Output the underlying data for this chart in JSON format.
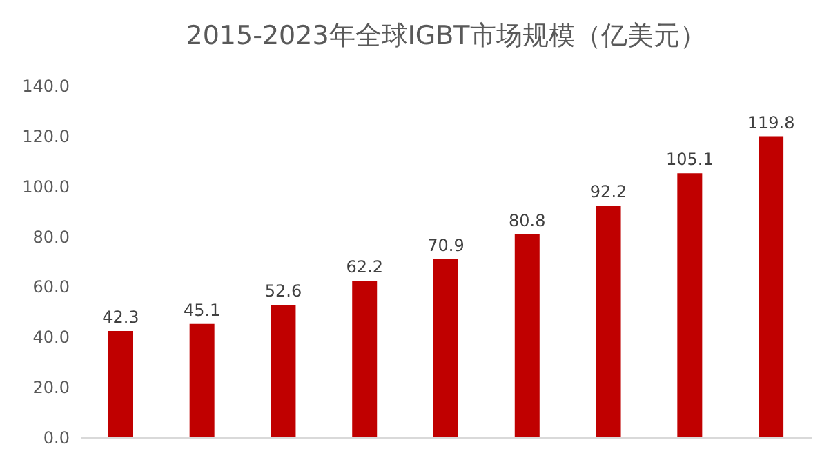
{
  "chart_data": {
    "type": "bar",
    "title": "2015-2023年全球IGBT市场规模（亿美元）",
    "categories": [
      null,
      null,
      null,
      null,
      null,
      null,
      null,
      null,
      null
    ],
    "values": [
      42.3,
      45.1,
      52.6,
      62.2,
      70.9,
      80.8,
      92.2,
      105.1,
      119.8
    ],
    "color": "#c00000",
    "data_labels": true,
    "tick_labels": "y",
    "grid": false,
    "ylim": [
      0,
      140
    ],
    "yticks": [
      {
        "value": 0,
        "label": "0.0"
      },
      {
        "value": 20,
        "label": "20.0"
      },
      {
        "value": 40,
        "label": "40.0"
      },
      {
        "value": 60,
        "label": "60.0"
      },
      {
        "value": 80,
        "label": "80.0"
      },
      {
        "value": 100,
        "label": "100.0"
      },
      {
        "value": 120,
        "label": "120.0"
      },
      {
        "value": 140,
        "label": "140.0"
      }
    ]
  }
}
